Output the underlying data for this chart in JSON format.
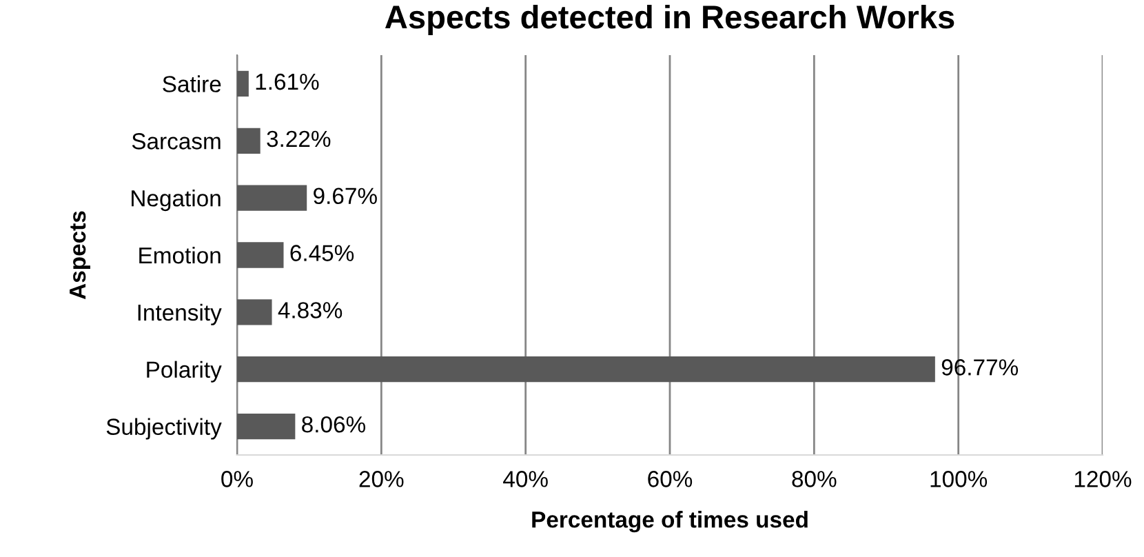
{
  "chart_data": {
    "type": "bar",
    "orientation": "horizontal",
    "title": "Aspects detected in Research Works",
    "xlabel": "Percentage of times used",
    "ylabel": "Aspects",
    "categories": [
      "Satire",
      "Sarcasm",
      "Negation",
      "Emotion",
      "Intensity",
      "Polarity",
      "Subjectivity"
    ],
    "values": [
      1.61,
      3.22,
      9.67,
      6.45,
      4.83,
      96.77,
      8.06
    ],
    "value_labels": [
      "1.61%",
      "3.22%",
      "9.67%",
      "6.45%",
      "4.83%",
      "96.77%",
      "8.06%"
    ],
    "color": "#595959",
    "xlim": [
      0,
      120
    ],
    "xticks": [
      {
        "value": 0,
        "label": "0%"
      },
      {
        "value": 20,
        "label": "20%"
      },
      {
        "value": 40,
        "label": "40%"
      },
      {
        "value": 60,
        "label": "60%"
      },
      {
        "value": 80,
        "label": "80%"
      },
      {
        "value": 100,
        "label": "100%"
      },
      {
        "value": 120,
        "label": "120%"
      }
    ],
    "grid": "x",
    "legend": false
  }
}
